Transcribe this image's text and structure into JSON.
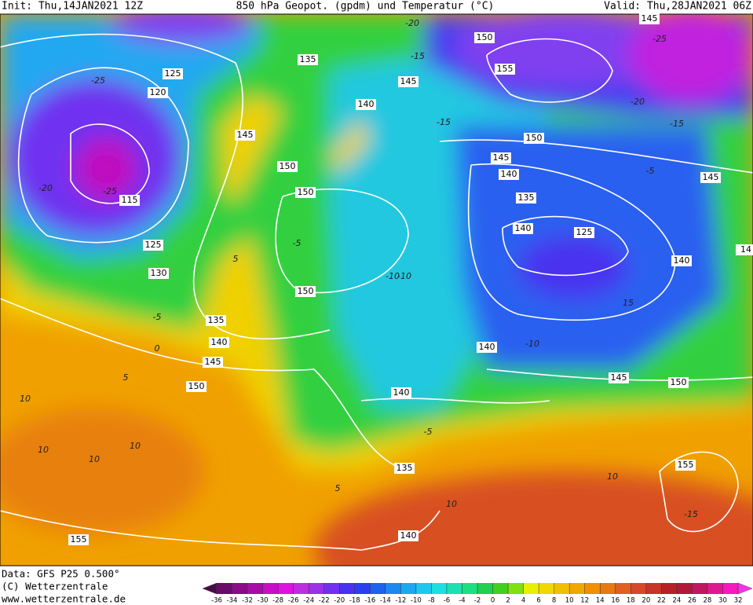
{
  "header": {
    "init": "Init: Thu,14JAN2021 12Z",
    "title": "850 hPa Geopot. (gpdm) und Temperatur (°C)",
    "valid": "Valid: Thu,28JAN2021 06Z"
  },
  "footer": {
    "data": "Data: GFS P25 0.500°",
    "copyright": "(C) Wetterzentrale",
    "url": "www.wetterzentrale.de"
  },
  "geopotential_labels": [
    145,
    150,
    155,
    125,
    120,
    135,
    145,
    140,
    145,
    150,
    150,
    150,
    145,
    140,
    135,
    125,
    115,
    125,
    130,
    150,
    135,
    140,
    145,
    150,
    140,
    140,
    145,
    150,
    140,
    135,
    140,
    155,
    155,
    140,
    145,
    14
  ],
  "temperature_labels": [
    -25,
    -20,
    -25,
    -20,
    -15,
    -25,
    -20,
    -15,
    -15,
    -10,
    -5,
    0,
    5,
    10,
    10,
    10,
    5,
    -5,
    -10,
    10,
    -5,
    5,
    10,
    -15,
    -5,
    -10,
    15,
    10
  ],
  "colorbar": {
    "ticks": [
      -36,
      -34,
      -32,
      -30,
      -28,
      -26,
      -24,
      -22,
      -20,
      -18,
      -16,
      -14,
      -12,
      -10,
      -8,
      -6,
      -4,
      -2,
      0,
      2,
      4,
      6,
      8,
      10,
      12,
      14,
      16,
      18,
      20,
      22,
      24,
      26,
      28,
      30,
      32
    ],
    "colors": [
      "#4a0a4a",
      "#6a0a6a",
      "#8a0a8a",
      "#a80ca8",
      "#c80ec8",
      "#e012e0",
      "#c02ce0",
      "#9a30e8",
      "#7030f0",
      "#4a30f0",
      "#2a40f0",
      "#1c64f0",
      "#1c88f0",
      "#1ca8f0",
      "#1cc8f0",
      "#1ce0e0",
      "#1ce0b0",
      "#1ce080",
      "#20d050",
      "#40d020",
      "#80e010",
      "#e8f000",
      "#f0d800",
      "#f0c000",
      "#f0a800",
      "#f09000",
      "#e87810",
      "#e06020",
      "#d84828",
      "#c83428",
      "#b82028",
      "#b0183c",
      "#c01860",
      "#e01890",
      "#f818c0",
      "#f830e8"
    ]
  }
}
